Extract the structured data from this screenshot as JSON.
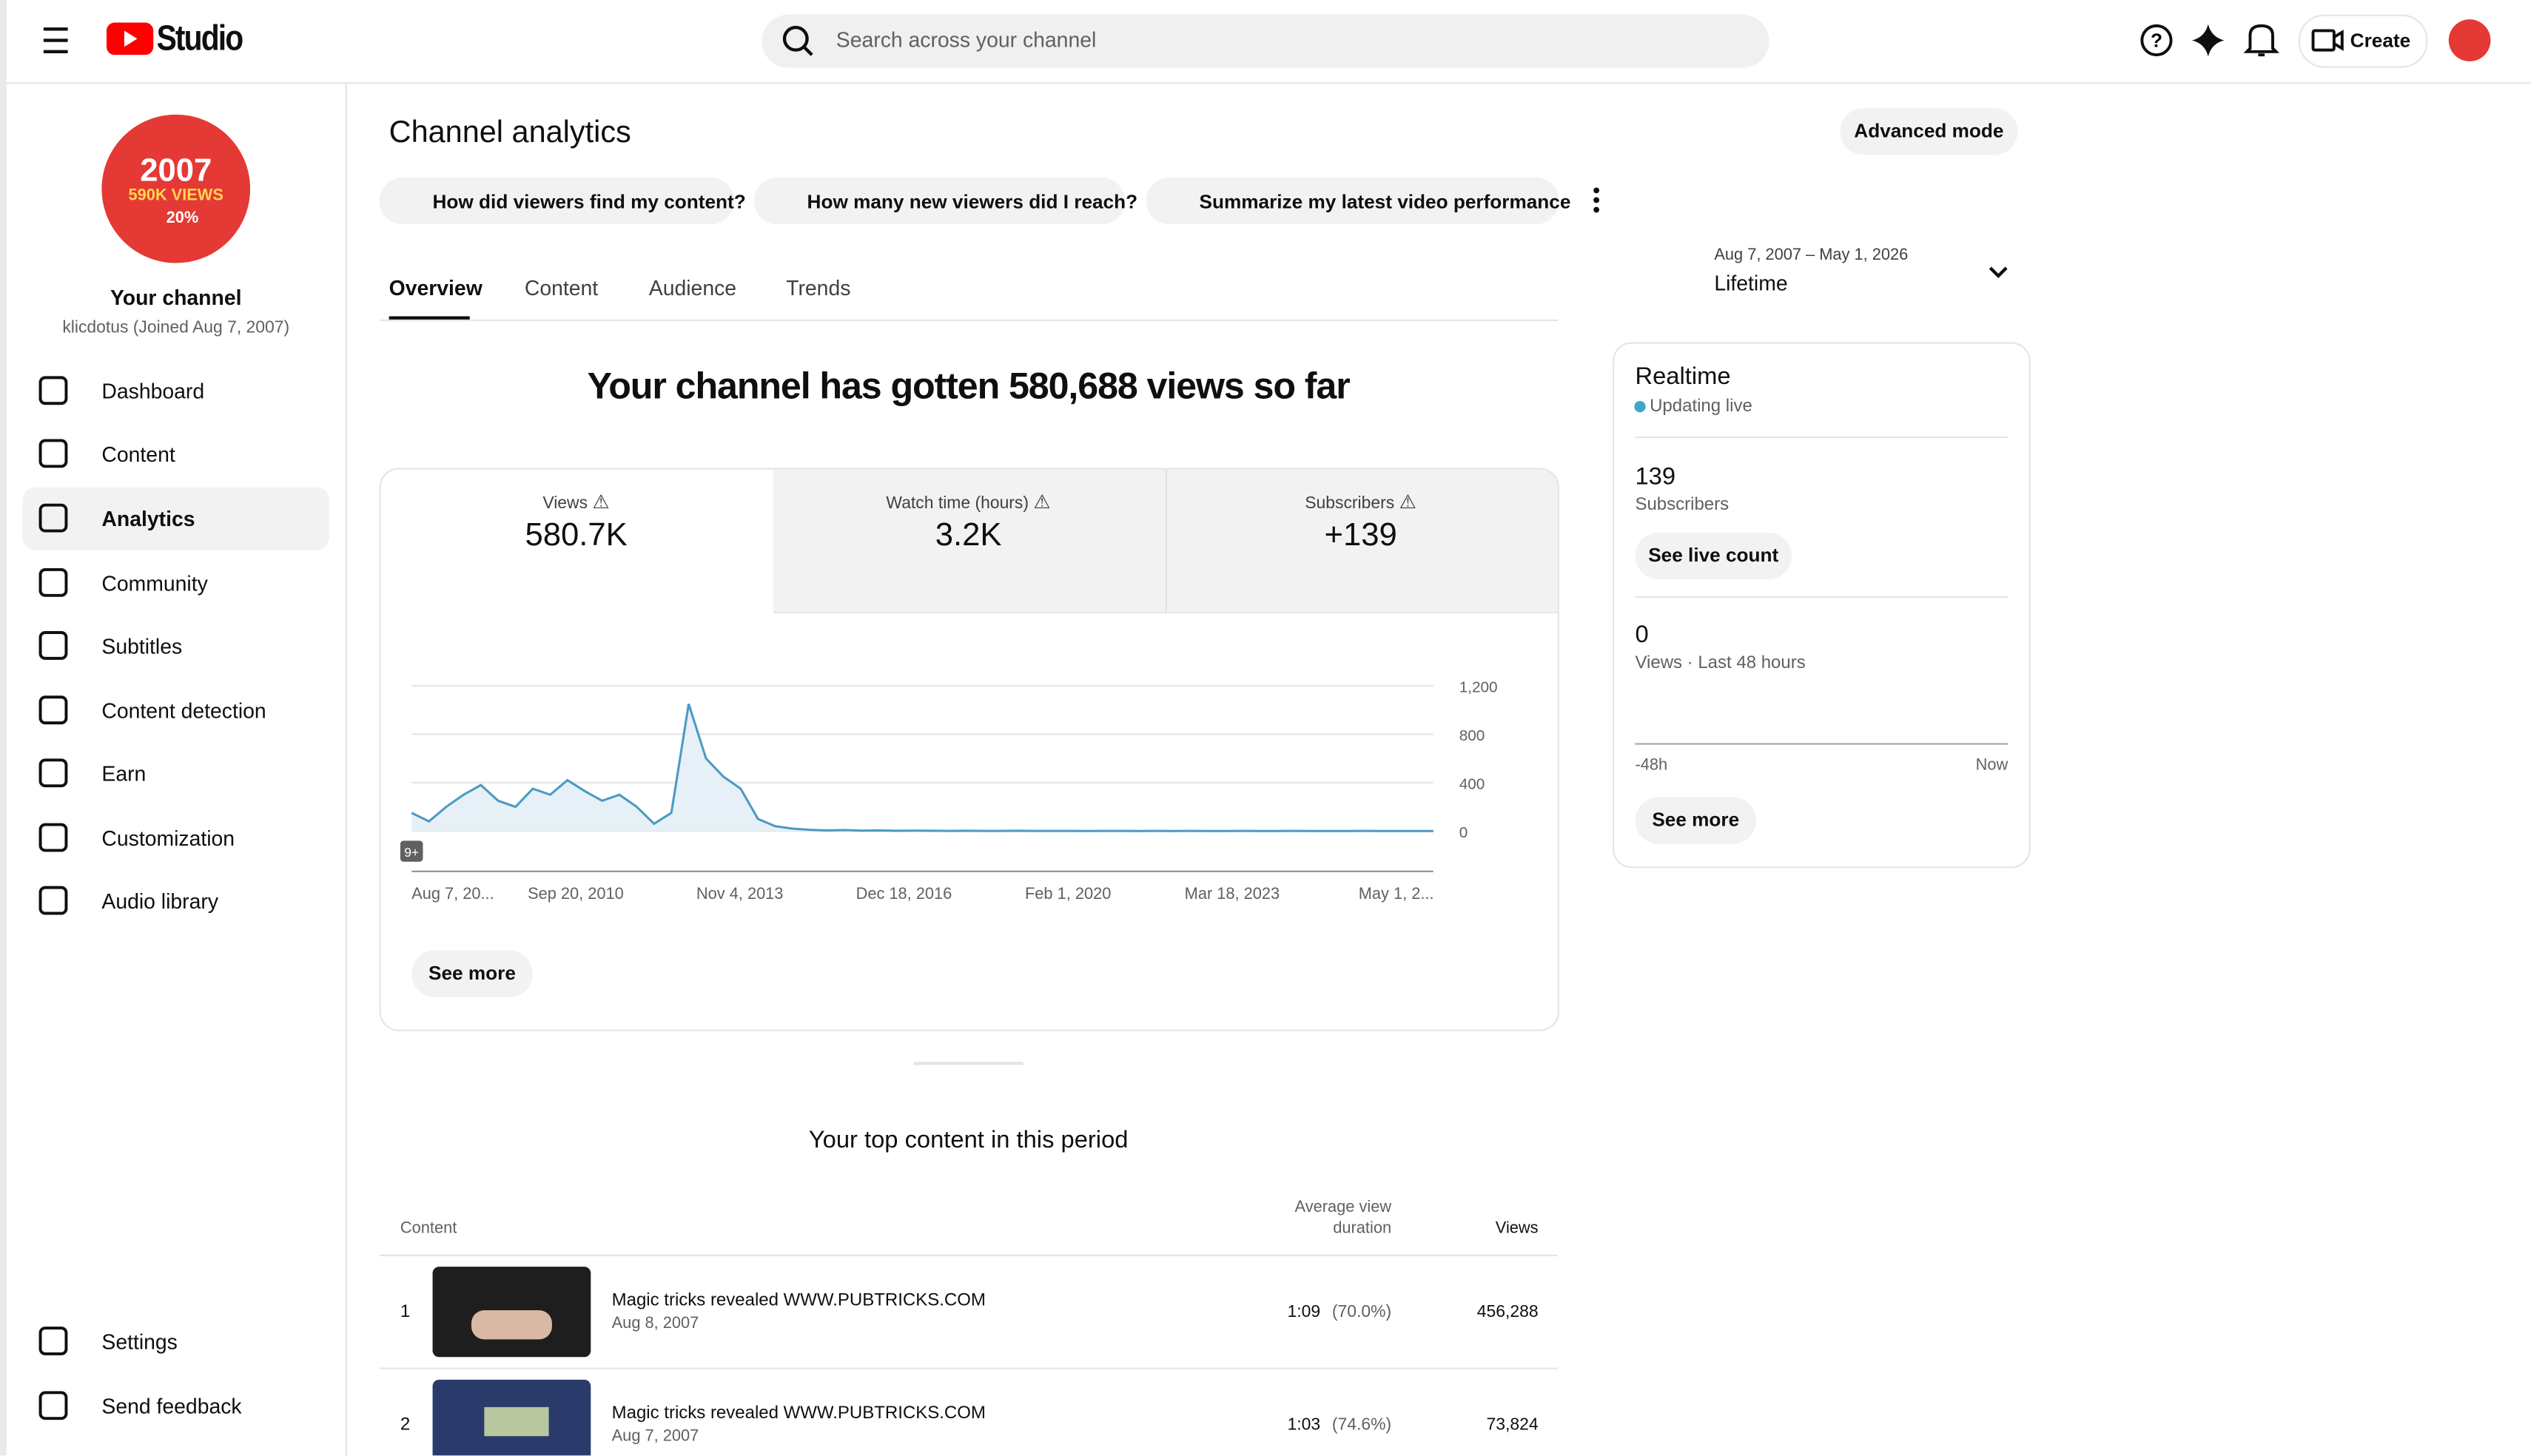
{
  "header": {
    "logo_text": "Studio",
    "search_placeholder": "Search across your channel",
    "create": "Create"
  },
  "avatar": {
    "line1": "2007",
    "line2": "590K VIEWS",
    "line3": "20%"
  },
  "sidebar": {
    "channel_name": "Your channel",
    "channel_meta": "klicdotus (Joined Aug 7, 2007)",
    "items": [
      "Dashboard",
      "Content",
      "Analytics",
      "Community",
      "Subtitles",
      "Content detection",
      "Earn",
      "Customization",
      "Audio library"
    ],
    "footer_items": [
      "Settings",
      "Send feedback"
    ]
  },
  "page": {
    "title": "Channel analytics",
    "advanced": "Advanced mode",
    "prompts": [
      "How did viewers find my content?",
      "How many new viewers did I reach?",
      "Summarize my latest video performance"
    ],
    "tabs": [
      "Overview",
      "Content",
      "Audience",
      "Trends"
    ],
    "date_range": "Aug 7, 2007 – May 1, 2026",
    "period": "Lifetime",
    "headline": "Your channel has gotten 580,688 views so far"
  },
  "metrics": [
    {
      "label": "Views",
      "value": "580.7K"
    },
    {
      "label": "Watch time (hours)",
      "value": "3.2K"
    },
    {
      "label": "Subscribers",
      "value": "+139"
    }
  ],
  "chart_data": {
    "type": "area",
    "color": "#4b9ac4",
    "values": [
      150,
      80,
      200,
      300,
      380,
      250,
      200,
      350,
      300,
      420,
      330,
      250,
      300,
      200,
      60,
      150,
      1050,
      600,
      450,
      350,
      100,
      40,
      20,
      10,
      5,
      8,
      3,
      5,
      2,
      3,
      2,
      1,
      2,
      1,
      1,
      2,
      1,
      1,
      1,
      0,
      1,
      1,
      0,
      1,
      0,
      1,
      0,
      0,
      1,
      0,
      0,
      1,
      0,
      0,
      0,
      1,
      0,
      0,
      0,
      0
    ],
    "ylim": [
      0,
      1200
    ],
    "yticks": [
      0,
      400,
      800,
      {
        "value": 1200,
        "label": "1,200"
      }
    ],
    "x_labels": [
      "Aug 7, 20...",
      "Sep 20, 2010",
      "Nov 4, 2013",
      "Dec 18, 2016",
      "Feb 1, 2020",
      "Mar 18, 2023",
      "May 1, 2..."
    ],
    "badge": "9+",
    "grid": true
  },
  "metrics_card": {
    "see_more": "See more"
  },
  "realtime": {
    "title": "Realtime",
    "status": "Updating live",
    "subs_value": "139",
    "subs_label": "Subscribers",
    "live_count": "See live count",
    "views_value": "0",
    "views_label": "Views · Last 48 hours",
    "axis_start": "-48h",
    "axis_end": "Now",
    "see_more": "See more"
  },
  "top_content": {
    "title": "Your top content in this period",
    "columns": [
      "Content",
      "Average view duration",
      "Views"
    ],
    "rows": [
      {
        "rank": "1",
        "title": "Magic tricks revealed WWW.PUBTRICKS.COM",
        "date": "Aug 8, 2007",
        "duration": "1:09",
        "percent": "(70.0%)",
        "views": "456,288"
      },
      {
        "rank": "2",
        "title": "Magic tricks revealed WWW.PUBTRICKS.COM",
        "date": "Aug 7, 2007",
        "duration": "1:03",
        "percent": "(74.6%)",
        "views": "73,824"
      }
    ]
  }
}
